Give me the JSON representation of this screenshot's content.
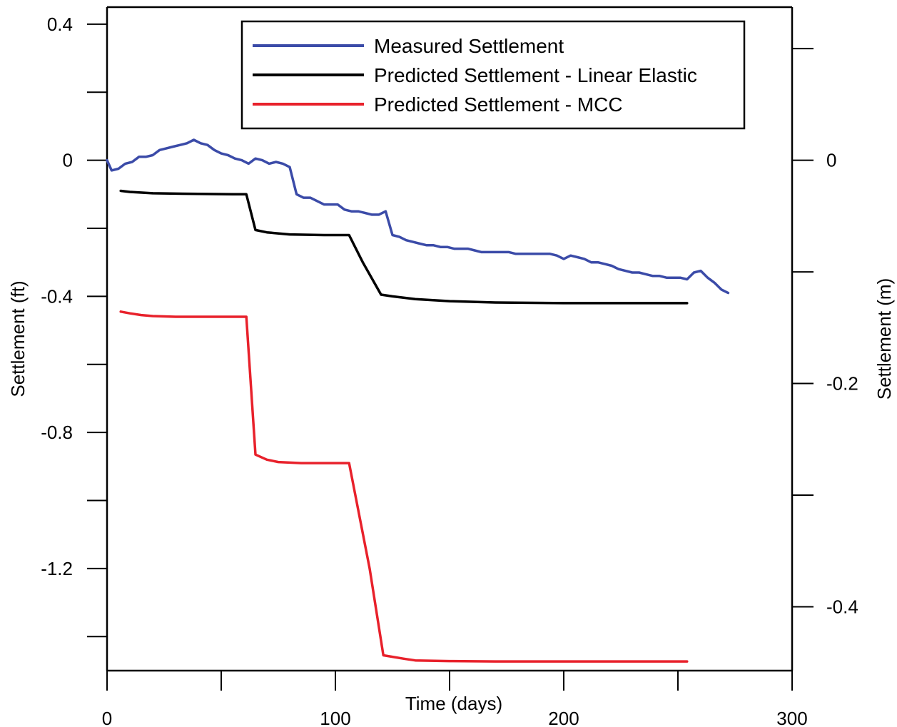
{
  "chart_data": {
    "type": "line",
    "xlabel": "Time (days)",
    "ylabel": "Settlement (ft)",
    "y2label": "Settlement (m)",
    "xlim": [
      0,
      300
    ],
    "ylim": [
      -1.5,
      0.45
    ],
    "y2lim": [
      -0.4572,
      0.13716
    ],
    "x_ticks": [
      0,
      100,
      200,
      300
    ],
    "x_tick_labels": [
      "0",
      "100",
      "200",
      "300"
    ],
    "y_ticks": [
      0.4,
      0,
      -0.4,
      -0.8,
      -1.2
    ],
    "y_tick_labels": [
      "0.4",
      "0",
      "-0.4",
      "-0.8",
      "-1.2"
    ],
    "y_minor_ticks": [
      0.2,
      -0.2,
      -0.6,
      -1.0,
      -1.4
    ],
    "y2_ticks": [
      0,
      -0.2,
      -0.4
    ],
    "y2_tick_labels": [
      "0",
      "-0.2",
      "-0.4"
    ],
    "y2_minor_ticks": [
      0.1,
      -0.1,
      -0.3
    ],
    "x_minor_ticks": [
      50,
      150,
      250
    ],
    "grid": false,
    "legend_position": "top",
    "series": [
      {
        "name": "Measured Settlement",
        "color": "#3b4ba8",
        "x": [
          0,
          2,
          5,
          8,
          11,
          14,
          17,
          20,
          23,
          26,
          29,
          32,
          35,
          38,
          41,
          44,
          47,
          50,
          53,
          56,
          59,
          62,
          65,
          68,
          71,
          74,
          77,
          80,
          83,
          86,
          89,
          92,
          95,
          98,
          101,
          104,
          107,
          110,
          113,
          116,
          119,
          122,
          125,
          128,
          131,
          134,
          137,
          140,
          143,
          146,
          149,
          152,
          155,
          158,
          161,
          164,
          167,
          170,
          173,
          176,
          179,
          182,
          185,
          188,
          191,
          194,
          197,
          200,
          203,
          206,
          209,
          212,
          215,
          218,
          221,
          224,
          227,
          230,
          233,
          236,
          239,
          242,
          245,
          248,
          251,
          254,
          257,
          260,
          263,
          266,
          269,
          272
        ],
        "y": [
          0.0,
          -0.03,
          -0.025,
          -0.01,
          -0.005,
          0.01,
          0.01,
          0.015,
          0.03,
          0.035,
          0.04,
          0.045,
          0.05,
          0.06,
          0.05,
          0.045,
          0.03,
          0.02,
          0.015,
          0.005,
          0.0,
          -0.01,
          0.005,
          0.0,
          -0.01,
          -0.005,
          -0.01,
          -0.02,
          -0.1,
          -0.11,
          -0.11,
          -0.12,
          -0.13,
          -0.13,
          -0.13,
          -0.145,
          -0.15,
          -0.15,
          -0.155,
          -0.16,
          -0.16,
          -0.15,
          -0.22,
          -0.225,
          -0.235,
          -0.24,
          -0.245,
          -0.25,
          -0.25,
          -0.255,
          -0.255,
          -0.26,
          -0.26,
          -0.26,
          -0.265,
          -0.27,
          -0.27,
          -0.27,
          -0.27,
          -0.27,
          -0.275,
          -0.275,
          -0.275,
          -0.275,
          -0.275,
          -0.275,
          -0.28,
          -0.29,
          -0.28,
          -0.285,
          -0.29,
          -0.3,
          -0.3,
          -0.305,
          -0.31,
          -0.32,
          -0.325,
          -0.33,
          -0.33,
          -0.335,
          -0.34,
          -0.34,
          -0.345,
          -0.345,
          -0.345,
          -0.35,
          -0.33,
          -0.325,
          -0.345,
          -0.36,
          -0.38,
          -0.39
        ]
      },
      {
        "name": "Predicted Settlement - Linear Elastic",
        "color": "#000000",
        "x": [
          6,
          10,
          20,
          40,
          55,
          61,
          65,
          70,
          80,
          95,
          106,
          112,
          120,
          125,
          135,
          150,
          170,
          200,
          230,
          254
        ],
        "y": [
          -0.09,
          -0.093,
          -0.097,
          -0.099,
          -0.1,
          -0.1,
          -0.205,
          -0.212,
          -0.218,
          -0.22,
          -0.22,
          -0.3,
          -0.395,
          -0.4,
          -0.408,
          -0.414,
          -0.418,
          -0.42,
          -0.42,
          -0.42
        ]
      },
      {
        "name": "Predicted Settlement - MCC",
        "color": "#e8212b",
        "x": [
          6,
          10,
          15,
          20,
          30,
          45,
          61,
          65,
          70,
          75,
          85,
          100,
          106,
          115,
          121,
          130,
          135,
          150,
          170,
          200,
          230,
          254
        ],
        "y": [
          -0.445,
          -0.45,
          -0.455,
          -0.458,
          -0.46,
          -0.46,
          -0.46,
          -0.865,
          -0.88,
          -0.887,
          -0.89,
          -0.89,
          -0.89,
          -1.2,
          -1.455,
          -1.465,
          -1.47,
          -1.472,
          -1.473,
          -1.473,
          -1.473,
          -1.473
        ]
      }
    ]
  }
}
